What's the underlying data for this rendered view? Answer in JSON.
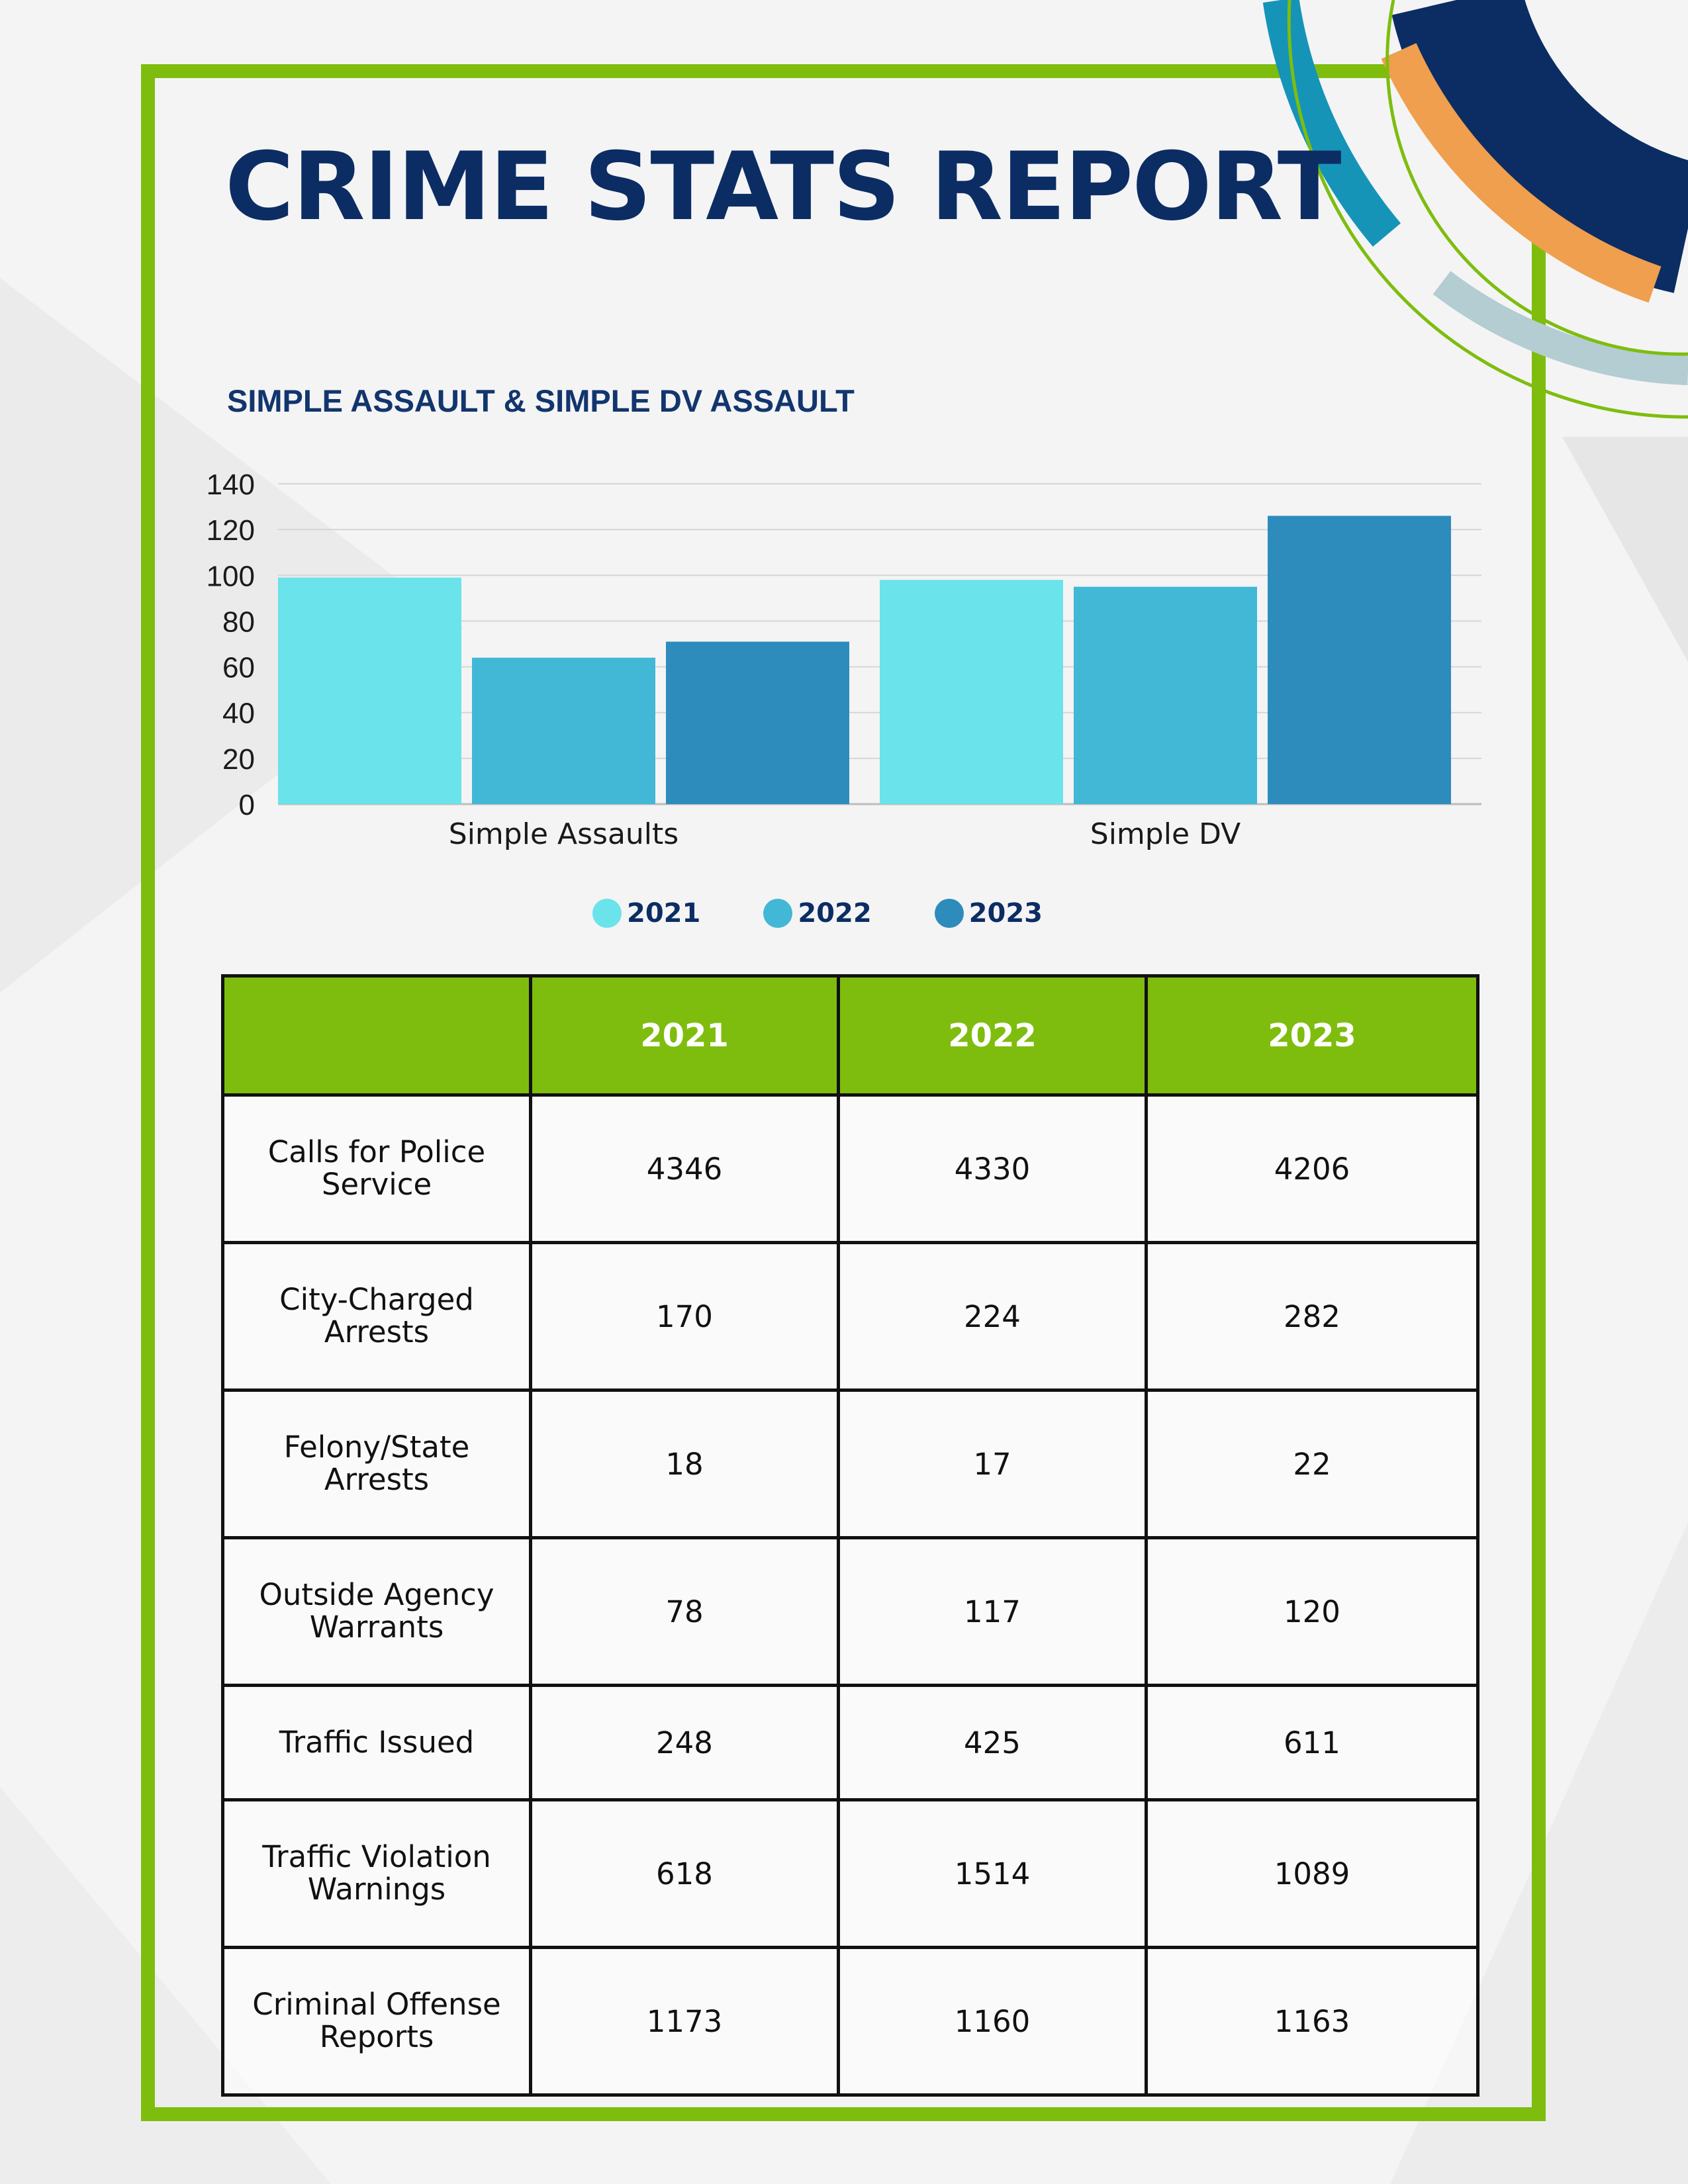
{
  "title": "CRIME STATS REPORT",
  "colors": {
    "frame": "#7ebd0e",
    "title": "#0c2d63",
    "series_2021": "#6ae3ea",
    "series_2022": "#42b7d6",
    "series_2023": "#2d8cbc",
    "header_bg": "#7ebd0e"
  },
  "chart_data": {
    "type": "bar",
    "title": "SIMPLE ASSAULT & SIMPLE DV ASSAULT",
    "categories": [
      "Simple Assaults",
      "Simple DV"
    ],
    "series": [
      {
        "name": "2021",
        "values": [
          99,
          98
        ]
      },
      {
        "name": "2022",
        "values": [
          64,
          95
        ]
      },
      {
        "name": "2023",
        "values": [
          71,
          126
        ]
      }
    ],
    "xlabel": "",
    "ylabel": "",
    "ylim": [
      0,
      140
    ],
    "yticks": [
      0,
      20,
      40,
      60,
      80,
      100,
      120,
      140
    ],
    "grid": true,
    "legend_position": "bottom"
  },
  "legend": [
    "2021",
    "2022",
    "2023"
  ],
  "table": {
    "headers": [
      "",
      "2021",
      "2022",
      "2023"
    ],
    "rows": [
      {
        "label": "Calls for Police Service",
        "values": [
          "4346",
          "4330",
          "4206"
        ]
      },
      {
        "label": "City-Charged Arrests",
        "values": [
          "170",
          "224",
          "282"
        ]
      },
      {
        "label": "Felony/State Arrests",
        "values": [
          "18",
          "17",
          "22"
        ]
      },
      {
        "label": "Outside Agency Warrants",
        "values": [
          "78",
          "117",
          "120"
        ]
      },
      {
        "label": "Traffic Issued",
        "values": [
          "248",
          "425",
          "611"
        ]
      },
      {
        "label": "Traffic Violation Warnings",
        "values": [
          "618",
          "1514",
          "1089"
        ]
      },
      {
        "label": "Criminal Offense Reports",
        "values": [
          "1173",
          "1160",
          "1163"
        ]
      }
    ]
  }
}
